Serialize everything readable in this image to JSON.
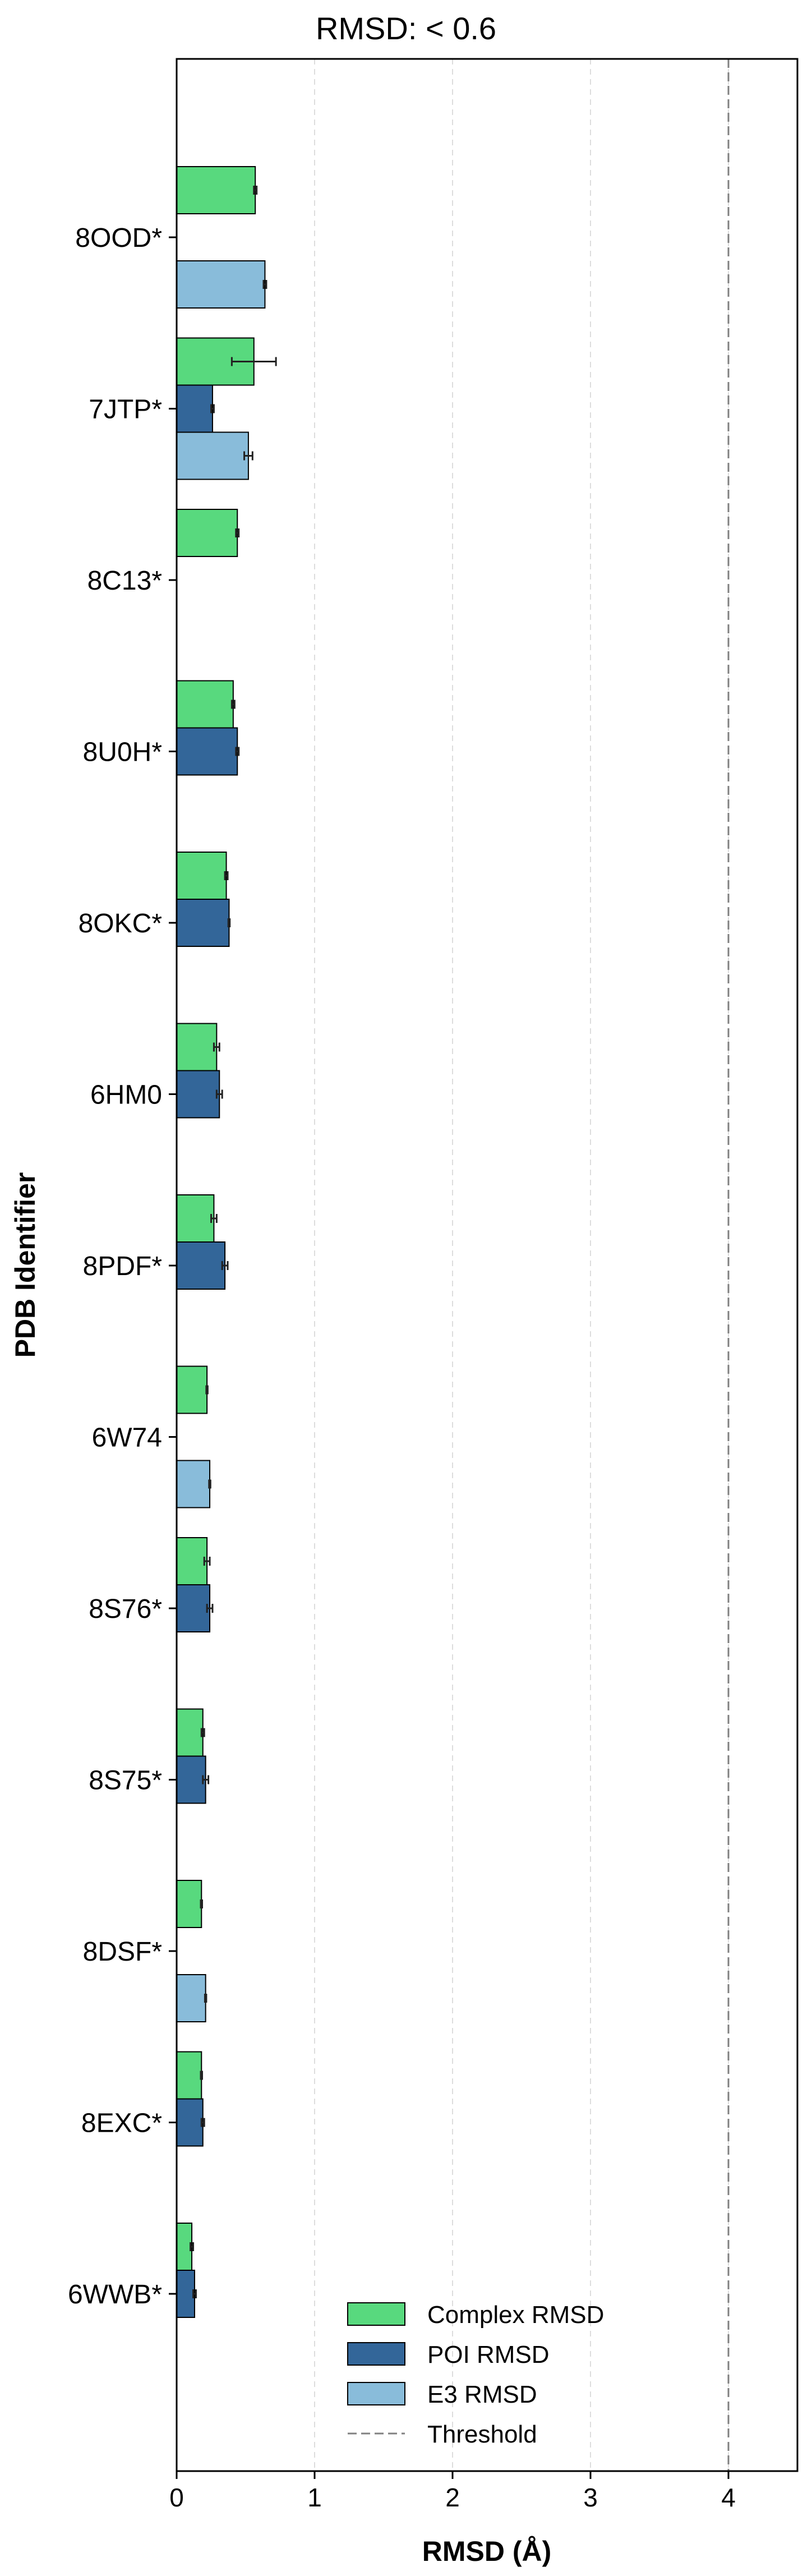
{
  "chart_data": {
    "type": "bar",
    "orientation": "horizontal",
    "title": "RMSD: < 0.6",
    "xlabel": "RMSD (Å)",
    "ylabel": "PDB Identifier",
    "xlim": [
      0,
      4.5
    ],
    "xticks": [
      0,
      1,
      2,
      3,
      4
    ],
    "grid": "x-dashed",
    "threshold": 4,
    "legend_position": "bottom-right",
    "series": [
      {
        "name": "Complex RMSD",
        "color": "#58D97E"
      },
      {
        "name": "POI RMSD",
        "color": "#336699"
      },
      {
        "name": "E3 RMSD",
        "color": "#89BCDA"
      },
      {
        "name": "Threshold",
        "color": "#808080"
      }
    ],
    "categories": [
      "8OOD*",
      "7JTP*",
      "8C13*",
      "8U0H*",
      "8OKC*",
      "6HM0",
      "8PDF*",
      "6W74",
      "8S76*",
      "8S75*",
      "8DSF*",
      "8EXC*",
      "6WWB*"
    ],
    "complex": [
      {
        "v": 0.57,
        "e": 0.01
      },
      {
        "v": 0.56,
        "e": 0.16
      },
      {
        "v": 0.44,
        "e": 0.01
      },
      {
        "v": 0.41,
        "e": 0.01
      },
      {
        "v": 0.36,
        "e": 0.01
      },
      {
        "v": 0.29,
        "e": 0.02
      },
      {
        "v": 0.27,
        "e": 0.02
      },
      {
        "v": 0.22,
        "e": 0.005
      },
      {
        "v": 0.22,
        "e": 0.02
      },
      {
        "v": 0.19,
        "e": 0.01
      },
      {
        "v": 0.18,
        "e": 0.005
      },
      {
        "v": 0.18,
        "e": 0.005
      },
      {
        "v": 0.11,
        "e": 0.01
      }
    ],
    "poi": [
      null,
      {
        "v": 0.26,
        "e": 0.01
      },
      null,
      {
        "v": 0.44,
        "e": 0.01
      },
      {
        "v": 0.38,
        "e": 0.005
      },
      {
        "v": 0.31,
        "e": 0.02
      },
      {
        "v": 0.35,
        "e": 0.02
      },
      null,
      {
        "v": 0.24,
        "e": 0.02
      },
      {
        "v": 0.21,
        "e": 0.02
      },
      null,
      {
        "v": 0.19,
        "e": 0.01
      },
      {
        "v": 0.13,
        "e": 0.01
      }
    ],
    "e3": [
      {
        "v": 0.64,
        "e": 0.01
      },
      {
        "v": 0.52,
        "e": 0.03
      },
      null,
      null,
      null,
      null,
      null,
      {
        "v": 0.24,
        "e": 0.005
      },
      null,
      null,
      {
        "v": 0.21,
        "e": 0.005
      },
      null,
      null
    ]
  }
}
